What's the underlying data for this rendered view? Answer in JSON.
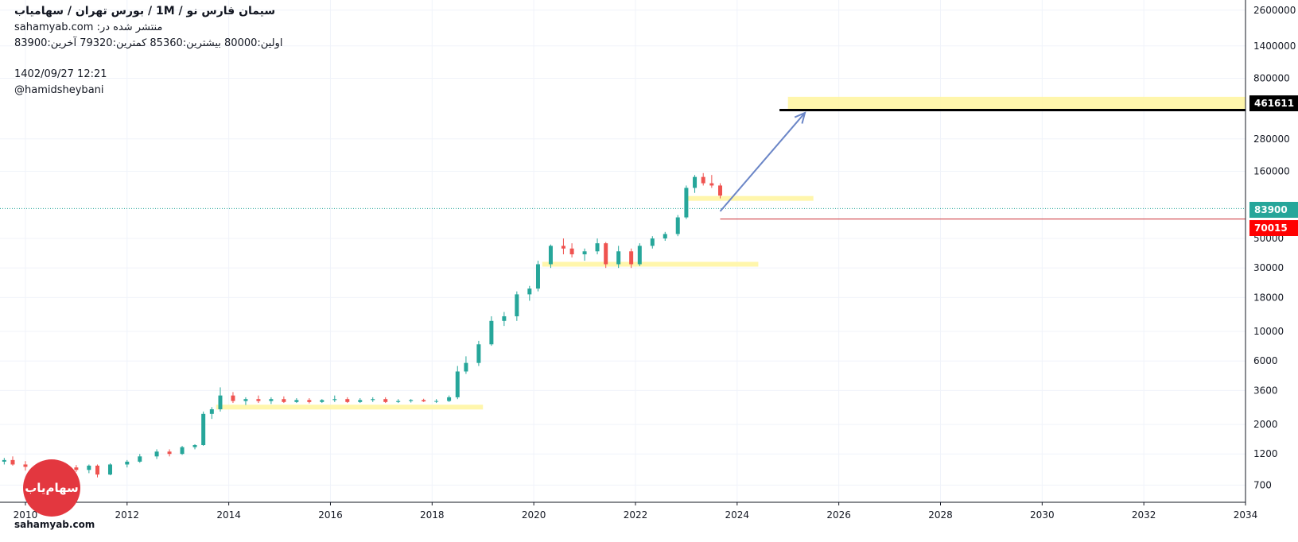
{
  "header": {
    "title": "سیمان فارس نو /  1M  /  بورس تهران / سهامیاب",
    "published_prefix": "منتشر شده در:",
    "published_site": "sahamyab.com",
    "ohlc": "اولین:80000  بیشترین:85360  کمترین:79320  آخرین:83900",
    "datetime": "1402/09/27 12:21",
    "author": "@hamidsheybani"
  },
  "logo": {
    "text": "سهام‌یاب",
    "url": "sahamyab.com"
  },
  "colors": {
    "up": "#26a69a",
    "down": "#ef5350",
    "zone": "#fff59d",
    "target_line": "#000000",
    "arrow": "#6b86c7",
    "support_line": "#d0444a",
    "badge_target": "#000000",
    "badge_last": "#26a69a",
    "badge_support": "#ff0000"
  },
  "chart_data": {
    "type": "candlestick",
    "scale": "log",
    "timeframe": "1M",
    "xlim": [
      2009.5,
      2034
    ],
    "ylim": [
      520,
      3100000
    ],
    "x_ticks": [
      "2010",
      "2012",
      "2014",
      "2016",
      "2018",
      "2020",
      "2022",
      "2024",
      "2026",
      "2028",
      "2030",
      "2032",
      "2034"
    ],
    "y_ticks": [
      700,
      1200,
      2000,
      3600,
      6000,
      10000,
      18000,
      30000,
      50000,
      160000,
      280000,
      800000,
      1400000,
      2600000
    ],
    "last_price": 83900,
    "support_level": 70015,
    "target_level": 461611,
    "candles": [
      {
        "t": "2009-08",
        "o": 1050,
        "h": 1120,
        "l": 1000,
        "c": 1080
      },
      {
        "t": "2009-10",
        "o": 1080,
        "h": 1150,
        "l": 980,
        "c": 1000
      },
      {
        "t": "2010-01",
        "o": 1000,
        "h": 1060,
        "l": 900,
        "c": 960
      },
      {
        "t": "2010-04",
        "o": 960,
        "h": 1020,
        "l": 900,
        "c": 1000
      },
      {
        "t": "2010-07",
        "o": 1000,
        "h": 1020,
        "l": 820,
        "c": 860
      },
      {
        "t": "2010-10",
        "o": 860,
        "h": 980,
        "l": 840,
        "c": 950
      },
      {
        "t": "2011-01",
        "o": 950,
        "h": 990,
        "l": 880,
        "c": 910
      },
      {
        "t": "2011-04",
        "o": 910,
        "h": 1000,
        "l": 860,
        "c": 980
      },
      {
        "t": "2011-06",
        "o": 980,
        "h": 1000,
        "l": 800,
        "c": 840
      },
      {
        "t": "2011-09",
        "o": 840,
        "h": 1020,
        "l": 830,
        "c": 1000
      },
      {
        "t": "2012-01",
        "o": 1000,
        "h": 1080,
        "l": 950,
        "c": 1050
      },
      {
        "t": "2012-04",
        "o": 1050,
        "h": 1200,
        "l": 1030,
        "c": 1150
      },
      {
        "t": "2012-08",
        "o": 1150,
        "h": 1300,
        "l": 1100,
        "c": 1250
      },
      {
        "t": "2012-11",
        "o": 1250,
        "h": 1300,
        "l": 1150,
        "c": 1200
      },
      {
        "t": "2013-02",
        "o": 1200,
        "h": 1380,
        "l": 1180,
        "c": 1350
      },
      {
        "t": "2013-05",
        "o": 1350,
        "h": 1420,
        "l": 1300,
        "c": 1400
      },
      {
        "t": "2013-07",
        "o": 1400,
        "h": 2500,
        "l": 1380,
        "c": 2400
      },
      {
        "t": "2013-09",
        "o": 2400,
        "h": 2700,
        "l": 2200,
        "c": 2600
      },
      {
        "t": "2013-11",
        "o": 2600,
        "h": 3800,
        "l": 2500,
        "c": 3300
      },
      {
        "t": "2014-02",
        "o": 3300,
        "h": 3500,
        "l": 2900,
        "c": 3000
      },
      {
        "t": "2014-05",
        "o": 3000,
        "h": 3200,
        "l": 2800,
        "c": 3100
      },
      {
        "t": "2014-08",
        "o": 3100,
        "h": 3300,
        "l": 2900,
        "c": 3000
      },
      {
        "t": "2014-11",
        "o": 3000,
        "h": 3200,
        "l": 2850,
        "c": 3100
      },
      {
        "t": "2015-02",
        "o": 3100,
        "h": 3250,
        "l": 2900,
        "c": 2950
      },
      {
        "t": "2015-05",
        "o": 2950,
        "h": 3150,
        "l": 2900,
        "c": 3050
      },
      {
        "t": "2015-08",
        "o": 3050,
        "h": 3150,
        "l": 2880,
        "c": 2950
      },
      {
        "t": "2015-11",
        "o": 2950,
        "h": 3100,
        "l": 2900,
        "c": 3050
      },
      {
        "t": "2016-02",
        "o": 3050,
        "h": 3300,
        "l": 2950,
        "c": 3100
      },
      {
        "t": "2016-05",
        "o": 3100,
        "h": 3200,
        "l": 2900,
        "c": 2950
      },
      {
        "t": "2016-08",
        "o": 2950,
        "h": 3150,
        "l": 2900,
        "c": 3050
      },
      {
        "t": "2016-11",
        "o": 3050,
        "h": 3200,
        "l": 2950,
        "c": 3100
      },
      {
        "t": "2017-02",
        "o": 3100,
        "h": 3200,
        "l": 2900,
        "c": 2950
      },
      {
        "t": "2017-05",
        "o": 2950,
        "h": 3100,
        "l": 2900,
        "c": 3000
      },
      {
        "t": "2017-08",
        "o": 3000,
        "h": 3100,
        "l": 2920,
        "c": 3050
      },
      {
        "t": "2017-11",
        "o": 3050,
        "h": 3120,
        "l": 2950,
        "c": 2980
      },
      {
        "t": "2018-02",
        "o": 2980,
        "h": 3100,
        "l": 2900,
        "c": 3000
      },
      {
        "t": "2018-05",
        "o": 3000,
        "h": 3300,
        "l": 2950,
        "c": 3200
      },
      {
        "t": "2018-07",
        "o": 3200,
        "h": 5500,
        "l": 3100,
        "c": 5000
      },
      {
        "t": "2018-09",
        "o": 5000,
        "h": 6500,
        "l": 4800,
        "c": 5800
      },
      {
        "t": "2018-12",
        "o": 5800,
        "h": 8500,
        "l": 5500,
        "c": 8000
      },
      {
        "t": "2019-03",
        "o": 8000,
        "h": 13000,
        "l": 7800,
        "c": 12000
      },
      {
        "t": "2019-06",
        "o": 12000,
        "h": 14000,
        "l": 11000,
        "c": 13000
      },
      {
        "t": "2019-09",
        "o": 13000,
        "h": 20000,
        "l": 12000,
        "c": 19000
      },
      {
        "t": "2019-12",
        "o": 19000,
        "h": 22000,
        "l": 17000,
        "c": 21000
      },
      {
        "t": "2020-02",
        "o": 21000,
        "h": 34000,
        "l": 20000,
        "c": 32000
      },
      {
        "t": "2020-05",
        "o": 32000,
        "h": 45000,
        "l": 30000,
        "c": 44000
      },
      {
        "t": "2020-08",
        "o": 44000,
        "h": 50000,
        "l": 38000,
        "c": 42000
      },
      {
        "t": "2020-10",
        "o": 42000,
        "h": 46000,
        "l": 36000,
        "c": 38000
      },
      {
        "t": "2021-01",
        "o": 38000,
        "h": 42000,
        "l": 34000,
        "c": 40000
      },
      {
        "t": "2021-04",
        "o": 40000,
        "h": 50000,
        "l": 38000,
        "c": 46000
      },
      {
        "t": "2021-06",
        "o": 46000,
        "h": 47000,
        "l": 30000,
        "c": 32000
      },
      {
        "t": "2021-09",
        "o": 32000,
        "h": 44000,
        "l": 30000,
        "c": 40000
      },
      {
        "t": "2021-12",
        "o": 40000,
        "h": 42000,
        "l": 30000,
        "c": 32000
      },
      {
        "t": "2022-02",
        "o": 32000,
        "h": 46000,
        "l": 31000,
        "c": 44000
      },
      {
        "t": "2022-05",
        "o": 44000,
        "h": 52000,
        "l": 42000,
        "c": 50000
      },
      {
        "t": "2022-08",
        "o": 50000,
        "h": 56000,
        "l": 48000,
        "c": 54000
      },
      {
        "t": "2022-11",
        "o": 54000,
        "h": 75000,
        "l": 52000,
        "c": 72000
      },
      {
        "t": "2023-01",
        "o": 72000,
        "h": 125000,
        "l": 70000,
        "c": 120000
      },
      {
        "t": "2023-03",
        "o": 120000,
        "h": 150000,
        "l": 110000,
        "c": 145000
      },
      {
        "t": "2023-05",
        "o": 145000,
        "h": 155000,
        "l": 125000,
        "c": 130000
      },
      {
        "t": "2023-07",
        "o": 130000,
        "h": 150000,
        "l": 120000,
        "c": 125000
      },
      {
        "t": "2023-09",
        "o": 125000,
        "h": 130000,
        "l": 100000,
        "c": 105000
      }
    ],
    "zones": [
      {
        "from": "2013-10",
        "to": "2019-01",
        "level": 2700
      },
      {
        "from": "2020-03",
        "to": "2024-06",
        "level": 32000
      },
      {
        "from": "2023-01",
        "to": "2025-07",
        "level": 100000
      },
      {
        "from": "2025-01",
        "to": "2034",
        "level_low": 470000,
        "level_high": 580000
      }
    ],
    "target_line": {
      "from": "2024-11",
      "to": "2034",
      "level": 461611
    },
    "support_line": {
      "from": "2023-09",
      "to": "2034",
      "level": 70015
    },
    "arrow": {
      "from": {
        "t": "2023-09",
        "y": 80000
      },
      "to": {
        "t": "2025-05",
        "y": 440000
      }
    }
  }
}
